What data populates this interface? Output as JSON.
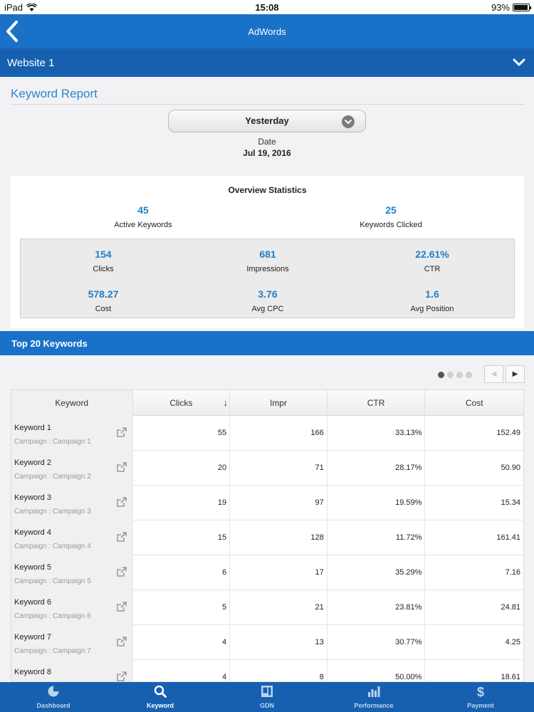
{
  "status_bar": {
    "device": "iPad",
    "time": "15:08",
    "battery": "93%",
    "battery_level": 0.93
  },
  "nav": {
    "title": "AdWords"
  },
  "site": {
    "name": "Website 1"
  },
  "report": {
    "title": "Keyword Report",
    "period": "Yesterday",
    "date_label": "Date",
    "date_value": "Jul 19, 2016"
  },
  "overview": {
    "heading": "Overview Statistics",
    "active_keywords": {
      "value": "45",
      "label": "Active Keywords"
    },
    "keywords_clicked": {
      "value": "25",
      "label": "Keywords Clicked"
    },
    "clicks": {
      "value": "154",
      "label": "Clicks"
    },
    "impressions": {
      "value": "681",
      "label": "Impressions"
    },
    "ctr": {
      "value": "22.61%",
      "label": "CTR"
    },
    "cost": {
      "value": "578.27",
      "label": "Cost"
    },
    "avg_cpc": {
      "value": "3.76",
      "label": "Avg CPC"
    },
    "avg_position": {
      "value": "1.6",
      "label": "Avg Position"
    }
  },
  "top": {
    "title": "Top 20 Keywords",
    "pages": 4,
    "current_page": 1
  },
  "table": {
    "headers": [
      "Keyword",
      "Clicks",
      "Impr",
      "CTR",
      "Cost"
    ],
    "sort_indicator": "↓",
    "rows": [
      {
        "keyword": "Keyword 1",
        "campaign": "Campaign : Campaign 1",
        "clicks": "55",
        "impr": "166",
        "ctr": "33.13%",
        "cost": "152.49"
      },
      {
        "keyword": "Keyword 2",
        "campaign": "Campaign : Campaign 2",
        "clicks": "20",
        "impr": "71",
        "ctr": "28.17%",
        "cost": "50.90"
      },
      {
        "keyword": "Keyword 3",
        "campaign": "Campaign : Campaign 3",
        "clicks": "19",
        "impr": "97",
        "ctr": "19.59%",
        "cost": "15.34"
      },
      {
        "keyword": "Keyword 4",
        "campaign": "Campaign : Campaign 4",
        "clicks": "15",
        "impr": "128",
        "ctr": "11.72%",
        "cost": "161.41"
      },
      {
        "keyword": "Keyword 5",
        "campaign": "Campaign : Campaign 5",
        "clicks": "6",
        "impr": "17",
        "ctr": "35.29%",
        "cost": "7.16"
      },
      {
        "keyword": "Keyword 6",
        "campaign": "Campaign : Campaign 6",
        "clicks": "5",
        "impr": "21",
        "ctr": "23.81%",
        "cost": "24.81"
      },
      {
        "keyword": "Keyword 7",
        "campaign": "Campaign : Campaign 7",
        "clicks": "4",
        "impr": "13",
        "ctr": "30.77%",
        "cost": "4.25"
      },
      {
        "keyword": "Keyword 8",
        "campaign": "",
        "clicks": "4",
        "impr": "8",
        "ctr": "50.00%",
        "cost": "18.61"
      }
    ]
  },
  "tabs": [
    {
      "label": "Dashboard",
      "icon": "pie-chart-icon",
      "active": false
    },
    {
      "label": "Keyword",
      "icon": "search-icon",
      "active": true
    },
    {
      "label": "GDN",
      "icon": "gdn-icon",
      "active": false
    },
    {
      "label": "Performance",
      "icon": "bar-chart-icon",
      "active": false
    },
    {
      "label": "Payment",
      "icon": "dollar-icon",
      "active": false
    }
  ],
  "colors": {
    "primary": "#1a72c8",
    "primary_dark": "#1760b0",
    "accent_value": "#1f7fc9"
  }
}
